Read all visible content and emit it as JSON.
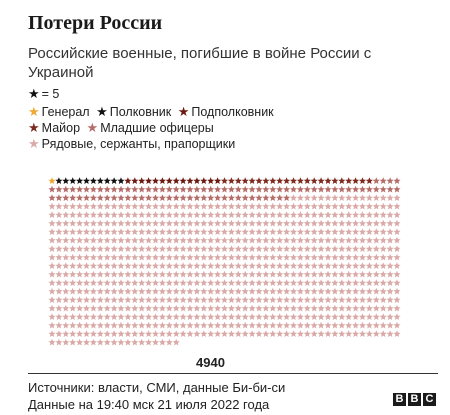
{
  "header": {
    "title": "Потери России",
    "subtitle": "Российские военные, погибшие в войне России с Украиной"
  },
  "unit": {
    "symbol": "★",
    "label": "= 5"
  },
  "footer": {
    "source": "Источники: власти, СМИ, данные Би-би-си",
    "date": "Данные на 19:40 мск 21 июля 2022 года",
    "logo": [
      "B",
      "B",
      "C"
    ]
  },
  "chart_data": {
    "type": "pictogram",
    "unit_value": 5,
    "total_label": "4940",
    "series": [
      {
        "name": "Генерал",
        "color": "#f0a830",
        "icons": 1
      },
      {
        "name": "Полковник",
        "color": "#111111",
        "icons": 10
      },
      {
        "name": "Подполковник",
        "color": "#6b1a12",
        "icons": 14
      },
      {
        "name": "Майор",
        "color": "#7d2a1f",
        "icons": 22
      },
      {
        "name": "Младшие офицеры",
        "color": "#b56d6a",
        "icons": 90
      },
      {
        "name": "Рядовые, сержанты, прапорщики",
        "color": "#d9aaa8",
        "icons": 851
      }
    ]
  }
}
